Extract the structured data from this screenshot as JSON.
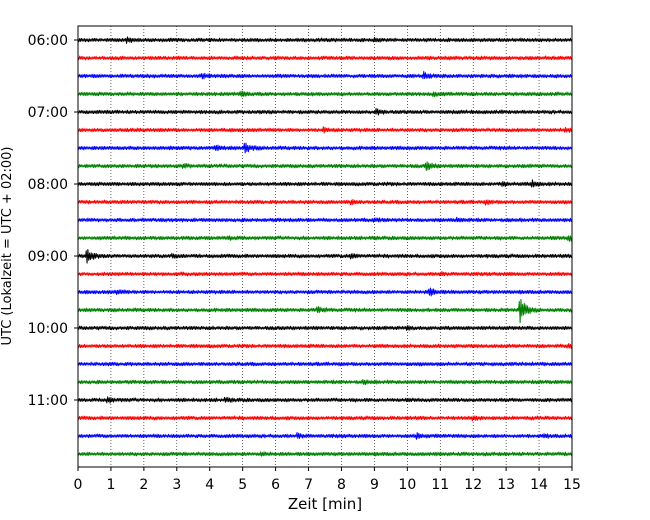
{
  "chart_data": {
    "type": "line",
    "title": "",
    "xlabel": "Zeit  [min]",
    "ylabel": "UTC (Lokalzeit = UTC + 02:00)",
    "xlim": [
      0,
      15
    ],
    "x_ticks": [
      "0",
      "1",
      "2",
      "3",
      "4",
      "5",
      "6",
      "7",
      "8",
      "9",
      "10",
      "11",
      "12",
      "13",
      "14",
      "15"
    ],
    "y_ticks": [
      "06:00",
      "07:00",
      "08:00",
      "09:00",
      "10:00",
      "11:00"
    ],
    "grid": "vertical dotted",
    "line_interval_minutes": 15,
    "colors_cycle": [
      "#000000",
      "#ff0000",
      "#0000ff",
      "#008000"
    ],
    "traces": [
      {
        "start": "06:00",
        "color": "#000000",
        "events": [
          {
            "t": 1.5,
            "a": 0.5
          },
          {
            "t": 9.0,
            "a": 0.4
          }
        ]
      },
      {
        "start": "06:15",
        "color": "#ff0000",
        "events": []
      },
      {
        "start": "06:30",
        "color": "#0000ff",
        "events": [
          {
            "t": 10.5,
            "a": 0.9
          },
          {
            "t": 3.8,
            "a": 0.4
          }
        ]
      },
      {
        "start": "06:45",
        "color": "#008000",
        "events": [
          {
            "t": 5.0,
            "a": 0.6
          },
          {
            "t": 10.8,
            "a": 0.5
          }
        ]
      },
      {
        "start": "07:00",
        "color": "#000000",
        "events": [
          {
            "t": 9.1,
            "a": 0.6
          }
        ]
      },
      {
        "start": "07:15",
        "color": "#ff0000",
        "events": [
          {
            "t": 7.5,
            "a": 0.5
          },
          {
            "t": 14.8,
            "a": 0.5
          }
        ]
      },
      {
        "start": "07:30",
        "color": "#0000ff",
        "events": [
          {
            "t": 5.1,
            "a": 1.2
          },
          {
            "t": 4.2,
            "a": 0.5
          }
        ]
      },
      {
        "start": "07:45",
        "color": "#008000",
        "events": [
          {
            "t": 10.6,
            "a": 1.0
          },
          {
            "t": 3.2,
            "a": 0.4
          }
        ]
      },
      {
        "start": "08:00",
        "color": "#000000",
        "events": [
          {
            "t": 13.8,
            "a": 0.8
          },
          {
            "t": 12.9,
            "a": 0.5
          }
        ]
      },
      {
        "start": "08:15",
        "color": "#ff0000",
        "events": [
          {
            "t": 8.3,
            "a": 0.5
          },
          {
            "t": 12.4,
            "a": 0.4
          }
        ]
      },
      {
        "start": "08:30",
        "color": "#0000ff",
        "events": [
          {
            "t": 11.5,
            "a": 0.5
          },
          {
            "t": 9.0,
            "a": 0.3
          }
        ]
      },
      {
        "start": "08:45",
        "color": "#008000",
        "events": [
          {
            "t": 14.9,
            "a": 0.7
          },
          {
            "t": 4.6,
            "a": 0.3
          }
        ]
      },
      {
        "start": "09:00",
        "color": "#000000",
        "events": [
          {
            "t": 0.3,
            "a": 1.8
          },
          {
            "t": 2.9,
            "a": 0.6
          },
          {
            "t": 8.3,
            "a": 0.6
          }
        ]
      },
      {
        "start": "09:15",
        "color": "#ff0000",
        "events": [
          {
            "t": 11.0,
            "a": 0.3
          }
        ]
      },
      {
        "start": "09:30",
        "color": "#0000ff",
        "events": [
          {
            "t": 10.7,
            "a": 0.9
          },
          {
            "t": 1.2,
            "a": 0.5
          }
        ]
      },
      {
        "start": "09:45",
        "color": "#008000",
        "events": [
          {
            "t": 13.45,
            "a": 3.5
          },
          {
            "t": 7.3,
            "a": 0.6
          }
        ]
      },
      {
        "start": "10:00",
        "color": "#000000",
        "events": [
          {
            "t": 10.0,
            "a": 0.4
          }
        ]
      },
      {
        "start": "10:15",
        "color": "#ff0000",
        "events": [
          {
            "t": 14.9,
            "a": 0.5
          }
        ]
      },
      {
        "start": "10:30",
        "color": "#0000ff",
        "events": []
      },
      {
        "start": "10:45",
        "color": "#008000",
        "events": [
          {
            "t": 8.7,
            "a": 0.3
          }
        ]
      },
      {
        "start": "11:00",
        "color": "#000000",
        "events": [
          {
            "t": 0.9,
            "a": 0.7
          },
          {
            "t": 4.5,
            "a": 0.3
          }
        ]
      },
      {
        "start": "11:15",
        "color": "#ff0000",
        "events": [
          {
            "t": 12.0,
            "a": 0.5
          }
        ]
      },
      {
        "start": "11:30",
        "color": "#0000ff",
        "events": [
          {
            "t": 10.3,
            "a": 0.6
          },
          {
            "t": 6.7,
            "a": 0.5
          },
          {
            "t": 14.2,
            "a": 0.4
          }
        ]
      },
      {
        "start": "11:45",
        "color": "#008000",
        "events": [
          {
            "t": 5.6,
            "a": 0.3
          }
        ]
      }
    ]
  }
}
